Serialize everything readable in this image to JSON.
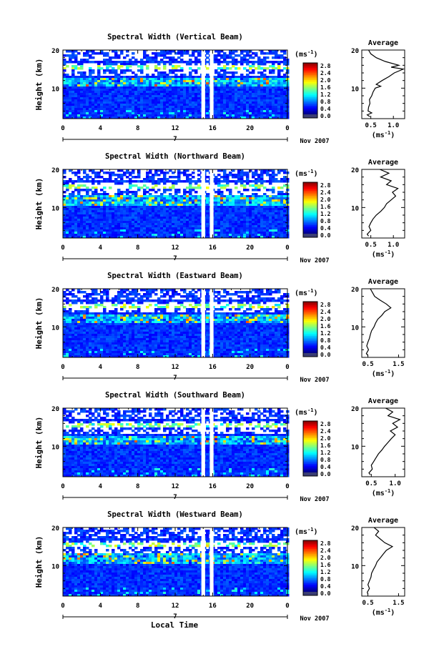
{
  "figure": {
    "bottom_xlabel": "Local Time",
    "colorbar_unit": "(ms",
    "colorbar_unit_sup": "-1",
    "colorbar_ticks": [
      "2.8",
      "2.4",
      "2.0",
      "1.6",
      "1.2",
      "0.8",
      "0.4",
      "0.0"
    ],
    "avg_title": "Average",
    "avg_unit": "(ms",
    "avg_unit_sup": "-1",
    "date_label": "Nov 2007",
    "day_label": "7",
    "ylabel": "Height (km)"
  },
  "chart_data": [
    {
      "type": "heatmap",
      "title": "Spectral Width (Vertical Beam)",
      "x_ticks": [
        "0",
        "4",
        "8",
        "12",
        "16",
        "20",
        "0"
      ],
      "y_ticks": [
        "20",
        "10"
      ],
      "xlim": [
        0,
        24
      ],
      "ylim": [
        2,
        20
      ],
      "color_range": [
        0.0,
        3.0
      ],
      "gaps_local_time": [
        [
          14.8,
          15.2
        ],
        [
          15.7,
          16.1
        ]
      ],
      "avg_profile": {
        "xlabel": "(ms-1)",
        "x_ticks": [
          "0.5",
          "1.0"
        ],
        "y_ticks": [
          "20",
          "10"
        ],
        "xlim": [
          0.3,
          1.25
        ],
        "height_km": [
          2.5,
          3,
          3.5,
          4,
          5,
          6,
          7,
          8,
          9,
          10,
          10.5,
          11,
          12,
          13,
          14,
          15,
          15.5,
          16,
          17,
          18,
          19,
          20
        ],
        "width_ms": [
          0.48,
          0.42,
          0.52,
          0.44,
          0.45,
          0.48,
          0.47,
          0.52,
          0.55,
          0.6,
          0.72,
          0.62,
          0.75,
          0.9,
          1.02,
          1.22,
          0.95,
          1.12,
          0.82,
          0.62,
          0.5,
          0.45
        ]
      }
    },
    {
      "type": "heatmap",
      "title": "Spectral Width (Northward Beam)",
      "x_ticks": [
        "0",
        "4",
        "8",
        "12",
        "16",
        "20",
        "0"
      ],
      "y_ticks": [
        "20",
        "10"
      ],
      "xlim": [
        0,
        24
      ],
      "ylim": [
        2,
        20
      ],
      "color_range": [
        0.0,
        3.0
      ],
      "gaps_local_time": [
        [
          14.8,
          15.2
        ],
        [
          15.7,
          16.1
        ]
      ],
      "avg_profile": {
        "xlabel": "(ms-1)",
        "x_ticks": [
          "0.5",
          "1.0"
        ],
        "y_ticks": [
          "20",
          "10"
        ],
        "xlim": [
          0.3,
          1.25
        ],
        "height_km": [
          2.5,
          3,
          4,
          5,
          6,
          7,
          8,
          9,
          10,
          11,
          12,
          13,
          14,
          15,
          16,
          17,
          18,
          19,
          20
        ],
        "width_ms": [
          0.45,
          0.42,
          0.5,
          0.46,
          0.5,
          0.55,
          0.62,
          0.72,
          0.8,
          0.85,
          0.95,
          1.05,
          0.98,
          1.1,
          0.85,
          0.95,
          0.72,
          0.9,
          0.7
        ]
      }
    },
    {
      "type": "heatmap",
      "title": "Spectral Width (Eastward Beam)",
      "x_ticks": [
        "0",
        "4",
        "8",
        "12",
        "16",
        "20",
        "0"
      ],
      "y_ticks": [
        "20",
        "10"
      ],
      "xlim": [
        0,
        24
      ],
      "ylim": [
        2,
        20
      ],
      "color_range": [
        0.0,
        3.0
      ],
      "gaps_local_time": [
        [
          14.8,
          15.2
        ],
        [
          15.7,
          16.1
        ]
      ],
      "avg_profile": {
        "xlabel": "(ms-1)",
        "x_ticks": [
          "0.5",
          "1.5"
        ],
        "y_ticks": [
          "20",
          "10"
        ],
        "xlim": [
          0.3,
          1.7
        ],
        "height_km": [
          2.5,
          3,
          4,
          5,
          6,
          7,
          8,
          9,
          10,
          11,
          12,
          13,
          14,
          15,
          16,
          17,
          18,
          19,
          20
        ],
        "width_ms": [
          0.5,
          0.45,
          0.52,
          0.46,
          0.5,
          0.55,
          0.58,
          0.62,
          0.7,
          0.75,
          0.82,
          0.95,
          1.05,
          1.25,
          1.1,
          0.9,
          0.72,
          0.65,
          0.58
        ]
      }
    },
    {
      "type": "heatmap",
      "title": "Spectral Width (Southward Beam)",
      "x_ticks": [
        "0",
        "4",
        "8",
        "12",
        "16",
        "20",
        "0"
      ],
      "y_ticks": [
        "20",
        "10"
      ],
      "xlim": [
        0,
        24
      ],
      "ylim": [
        2,
        20
      ],
      "color_range": [
        0.0,
        3.0
      ],
      "gaps_local_time": [
        [
          14.8,
          15.2
        ],
        [
          15.7,
          16.1
        ]
      ],
      "avg_profile": {
        "xlabel": "(ms-1)",
        "x_ticks": [
          "0.5",
          "1.0"
        ],
        "y_ticks": [
          "20",
          "10"
        ],
        "xlim": [
          0.3,
          1.2
        ],
        "height_km": [
          2.5,
          3,
          4,
          5,
          6,
          7,
          8,
          9,
          10,
          11,
          12,
          13,
          14,
          15,
          16,
          17,
          18,
          19,
          20
        ],
        "width_ms": [
          0.48,
          0.45,
          0.52,
          0.5,
          0.55,
          0.6,
          0.65,
          0.72,
          0.78,
          0.85,
          0.92,
          1.0,
          0.9,
          1.05,
          0.95,
          1.1,
          0.85,
          0.95,
          0.8
        ]
      }
    },
    {
      "type": "heatmap",
      "title": "Spectral Width (Westward Beam)",
      "x_ticks": [
        "0",
        "4",
        "8",
        "12",
        "16",
        "20",
        "0"
      ],
      "y_ticks": [
        "20",
        "10"
      ],
      "xlim": [
        0,
        24
      ],
      "ylim": [
        2,
        20
      ],
      "color_range": [
        0.0,
        3.0
      ],
      "gaps_local_time": [
        [
          14.8,
          15.2
        ],
        [
          15.7,
          16.1
        ]
      ],
      "avg_profile": {
        "xlabel": "(ms-1)",
        "x_ticks": [
          "0.5",
          "1.5"
        ],
        "y_ticks": [
          "20",
          "10"
        ],
        "xlim": [
          0.3,
          1.7
        ],
        "height_km": [
          2.5,
          3,
          4,
          5,
          6,
          7,
          8,
          9,
          10,
          11,
          12,
          13,
          14,
          15,
          16,
          17,
          18,
          19,
          20
        ],
        "width_ms": [
          0.5,
          0.48,
          0.55,
          0.5,
          0.55,
          0.6,
          0.62,
          0.68,
          0.75,
          0.8,
          0.9,
          1.0,
          1.1,
          1.3,
          1.05,
          0.9,
          0.75,
          0.85,
          0.7
        ]
      }
    }
  ]
}
